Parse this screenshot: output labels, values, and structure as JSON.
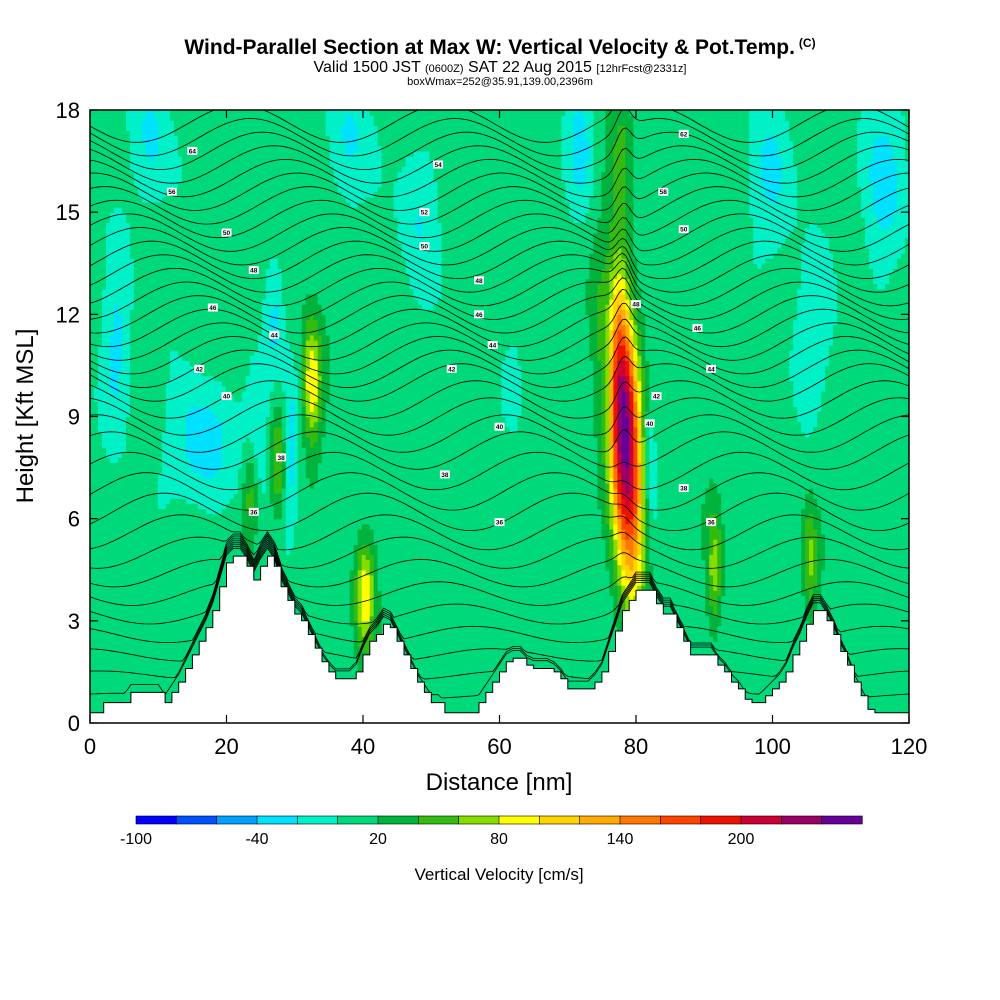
{
  "header": {
    "title": "Wind-Parallel Section at Max W: Vertical Velocity & Pot.Temp.",
    "copyright_mark": "(C)",
    "valid_prefix": "Valid 1500 JST",
    "valid_zulu": "(0600Z)",
    "valid_date": "SAT 22 Aug 2015",
    "forecast": "[12hrFcst@2331z]",
    "box_info": "boxWmax=252@35.91,139.00,2396m"
  },
  "chart_data": {
    "type": "heatmap",
    "xlabel": "Distance [nm]",
    "ylabel": "Height [Kft MSL]",
    "xlim": [
      0,
      120
    ],
    "ylim": [
      0,
      18
    ],
    "x_ticks": [
      0,
      20,
      40,
      60,
      80,
      100,
      120
    ],
    "y_ticks": [
      0,
      3,
      6,
      9,
      12,
      15,
      18
    ],
    "colorbar": {
      "title": "Vertical Velocity [cm/s]",
      "levels": [
        -100,
        -80,
        -60,
        -40,
        -20,
        0,
        20,
        40,
        60,
        80,
        100,
        120,
        140,
        160,
        180,
        200,
        220,
        240
      ],
      "tick_labels": [
        "-100",
        "-40",
        "20",
        "80",
        "140",
        "200"
      ],
      "colors": [
        "#0000ff",
        "#0050ff",
        "#00a0ff",
        "#00e0ff",
        "#00f0c8",
        "#00d97a",
        "#00b33c",
        "#33bb11",
        "#88dd00",
        "#ffff00",
        "#ffd400",
        "#ffaa00",
        "#ff7700",
        "#ff4400",
        "#ee1100",
        "#cc0033",
        "#990066",
        "#660099"
      ]
    },
    "background_wind": 10,
    "updrafts": [
      {
        "x": 78.2,
        "y": 8.6,
        "w_max": 252,
        "sx": 1.7,
        "sy": 3.0,
        "tilt": -0.25
      },
      {
        "x": 32.5,
        "y": 10.0,
        "w_max": 90,
        "sx": 1.0,
        "sy": 1.3,
        "tilt": 0
      },
      {
        "x": 40.3,
        "y": 3.8,
        "w_max": 85,
        "sx": 1.0,
        "sy": 1.1,
        "tilt": 0
      },
      {
        "x": 27.5,
        "y": 7.8,
        "w_max": 55,
        "sx": 0.8,
        "sy": 1.2,
        "tilt": 0
      },
      {
        "x": 23.5,
        "y": 6.8,
        "w_max": 50,
        "sx": 0.8,
        "sy": 1.0,
        "tilt": 0
      },
      {
        "x": 91.5,
        "y": 4.5,
        "w_max": 60,
        "sx": 0.8,
        "sy": 1.3,
        "tilt": 0
      },
      {
        "x": 105.5,
        "y": 4.8,
        "w_max": 55,
        "sx": 0.8,
        "sy": 1.1,
        "tilt": 0
      },
      {
        "x": 78.0,
        "y": 16.5,
        "w_max": 30,
        "sx": 1.2,
        "sy": 2.0,
        "tilt": 0
      }
    ],
    "downdrafts": [
      {
        "x": 16.0,
        "y": 8.2,
        "w_min": -45,
        "sx": 3.0,
        "sy": 1.3
      },
      {
        "x": 24.5,
        "y": 8.5,
        "w_min": -35,
        "sx": 1.5,
        "sy": 1.5
      },
      {
        "x": 29.5,
        "y": 8.0,
        "w_min": -40,
        "sx": 0.8,
        "sy": 1.5
      },
      {
        "x": 76.0,
        "y": 11.0,
        "w_min": -45,
        "sx": 0.8,
        "sy": 2.0
      },
      {
        "x": 82.0,
        "y": 7.5,
        "w_min": -40,
        "sx": 0.8,
        "sy": 1.8
      },
      {
        "x": 4.0,
        "y": 11.0,
        "w_min": -35,
        "sx": 1.5,
        "sy": 2.0
      },
      {
        "x": 27.0,
        "y": 12.0,
        "w_min": -35,
        "sx": 1.0,
        "sy": 1.5
      },
      {
        "x": 9.0,
        "y": 17.0,
        "w_min": -35,
        "sx": 2.0,
        "sy": 1.5
      },
      {
        "x": 38.0,
        "y": 17.0,
        "w_min": -35,
        "sx": 2.0,
        "sy": 1.5
      },
      {
        "x": 48.0,
        "y": 15.0,
        "w_min": -30,
        "sx": 2.0,
        "sy": 1.8
      },
      {
        "x": 72.0,
        "y": 17.0,
        "w_min": -35,
        "sx": 1.5,
        "sy": 1.5
      },
      {
        "x": 100.0,
        "y": 16.0,
        "w_min": -30,
        "sx": 2.5,
        "sy": 1.8
      },
      {
        "x": 116.0,
        "y": 16.0,
        "w_min": -35,
        "sx": 2.5,
        "sy": 2.0
      },
      {
        "x": 62.0,
        "y": 10.0,
        "w_min": -30,
        "sx": 1.0,
        "sy": 1.0
      },
      {
        "x": 106.0,
        "y": 11.5,
        "w_min": -25,
        "sx": 2.5,
        "sy": 1.5
      }
    ],
    "terrain": {
      "distance_nm": [
        0,
        1,
        2,
        3,
        4,
        5,
        6,
        7,
        8,
        9,
        10,
        11,
        12,
        13,
        14,
        15,
        16,
        17,
        18,
        19,
        20,
        21,
        22,
        23,
        24,
        25,
        26,
        27,
        28,
        29,
        30,
        31,
        32,
        33,
        34,
        35,
        36,
        37,
        38,
        39,
        40,
        41,
        42,
        43,
        44,
        45,
        46,
        47,
        48,
        49,
        50,
        51,
        52,
        53,
        54,
        55,
        56,
        57,
        58,
        59,
        60,
        61,
        62,
        63,
        64,
        65,
        66,
        67,
        68,
        69,
        70,
        71,
        72,
        73,
        74,
        75,
        76,
        77,
        78,
        79,
        80,
        81,
        82,
        83,
        84,
        85,
        86,
        87,
        88,
        89,
        90,
        91,
        92,
        93,
        94,
        95,
        96,
        97,
        98,
        99,
        100,
        101,
        102,
        103,
        104,
        105,
        106,
        107,
        108,
        109,
        110,
        111,
        112,
        113,
        114,
        115,
        116,
        117,
        118,
        119,
        120
      ],
      "height_kft": [
        0.3,
        0.3,
        0.6,
        0.6,
        0.6,
        0.6,
        0.9,
        0.9,
        0.9,
        0.9,
        0.9,
        0.6,
        0.9,
        1.2,
        1.6,
        2.0,
        2.4,
        2.8,
        3.3,
        4.0,
        4.7,
        4.9,
        4.9,
        4.6,
        4.2,
        4.6,
        4.9,
        4.6,
        4.0,
        3.6,
        3.2,
        3.0,
        2.6,
        2.2,
        1.8,
        1.5,
        1.3,
        1.3,
        1.3,
        1.5,
        2.0,
        2.4,
        2.6,
        2.9,
        2.8,
        2.4,
        2.0,
        1.6,
        1.2,
        0.9,
        0.6,
        0.6,
        0.3,
        0.3,
        0.3,
        0.3,
        0.3,
        0.6,
        0.9,
        1.2,
        1.5,
        1.8,
        1.9,
        1.9,
        1.7,
        1.6,
        1.6,
        1.6,
        1.5,
        1.3,
        1.0,
        1.0,
        1.0,
        1.0,
        1.2,
        1.5,
        2.1,
        2.7,
        3.3,
        3.6,
        3.9,
        3.9,
        3.9,
        3.5,
        3.2,
        3.2,
        2.8,
        2.4,
        2.0,
        2.0,
        2.0,
        2.0,
        1.7,
        1.5,
        1.2,
        1.0,
        0.7,
        0.6,
        0.6,
        0.8,
        1.0,
        1.2,
        1.5,
        2.0,
        2.4,
        2.9,
        3.3,
        3.3,
        3.0,
        2.6,
        2.1,
        1.7,
        1.2,
        0.8,
        0.4,
        0.3,
        0.3,
        0.3,
        0.3,
        0.3,
        0.3
      ]
    },
    "isentrope_labels": [
      {
        "x": 15,
        "y": 16.8,
        "label": "64"
      },
      {
        "x": 12,
        "y": 15.6,
        "label": "56"
      },
      {
        "x": 20,
        "y": 14.4,
        "label": "50"
      },
      {
        "x": 24,
        "y": 13.3,
        "label": "48"
      },
      {
        "x": 18,
        "y": 12.2,
        "label": "46"
      },
      {
        "x": 27,
        "y": 11.4,
        "label": "44"
      },
      {
        "x": 16,
        "y": 10.4,
        "label": "42"
      },
      {
        "x": 20,
        "y": 9.6,
        "label": "40"
      },
      {
        "x": 28,
        "y": 7.8,
        "label": "38"
      },
      {
        "x": 24,
        "y": 6.2,
        "label": "36"
      },
      {
        "x": 51,
        "y": 16.4,
        "label": "54"
      },
      {
        "x": 49,
        "y": 15.0,
        "label": "52"
      },
      {
        "x": 49,
        "y": 14.0,
        "label": "50"
      },
      {
        "x": 57,
        "y": 13.0,
        "label": "48"
      },
      {
        "x": 57,
        "y": 12.0,
        "label": "46"
      },
      {
        "x": 59,
        "y": 11.1,
        "label": "44"
      },
      {
        "x": 53,
        "y": 10.4,
        "label": "42"
      },
      {
        "x": 60,
        "y": 8.7,
        "label": "40"
      },
      {
        "x": 52,
        "y": 7.3,
        "label": "38"
      },
      {
        "x": 60,
        "y": 5.9,
        "label": "36"
      },
      {
        "x": 87,
        "y": 17.3,
        "label": "62"
      },
      {
        "x": 84,
        "y": 15.6,
        "label": "58"
      },
      {
        "x": 87,
        "y": 14.5,
        "label": "50"
      },
      {
        "x": 80,
        "y": 12.3,
        "label": "48"
      },
      {
        "x": 89,
        "y": 11.6,
        "label": "46"
      },
      {
        "x": 91,
        "y": 10.4,
        "label": "44"
      },
      {
        "x": 83,
        "y": 9.6,
        "label": "42"
      },
      {
        "x": 82,
        "y": 8.8,
        "label": "40"
      },
      {
        "x": 87,
        "y": 6.9,
        "label": "38"
      },
      {
        "x": 91,
        "y": 5.9,
        "label": "36"
      }
    ],
    "isentrope_levels_kft": [
      0.8,
      1.4,
      2.0,
      2.6,
      3.2,
      3.8,
      4.4,
      5.0,
      5.6,
      6.2,
      6.8,
      7.4,
      8.0,
      8.5,
      9.0,
      9.5,
      10.0,
      10.4,
      10.8,
      11.2,
      11.6,
      12.0,
      12.4,
      12.8,
      13.2,
      13.6,
      14.0,
      14.4,
      14.8,
      15.2,
      15.6,
      16.0,
      16.4,
      16.8,
      17.2,
      17.6
    ]
  }
}
